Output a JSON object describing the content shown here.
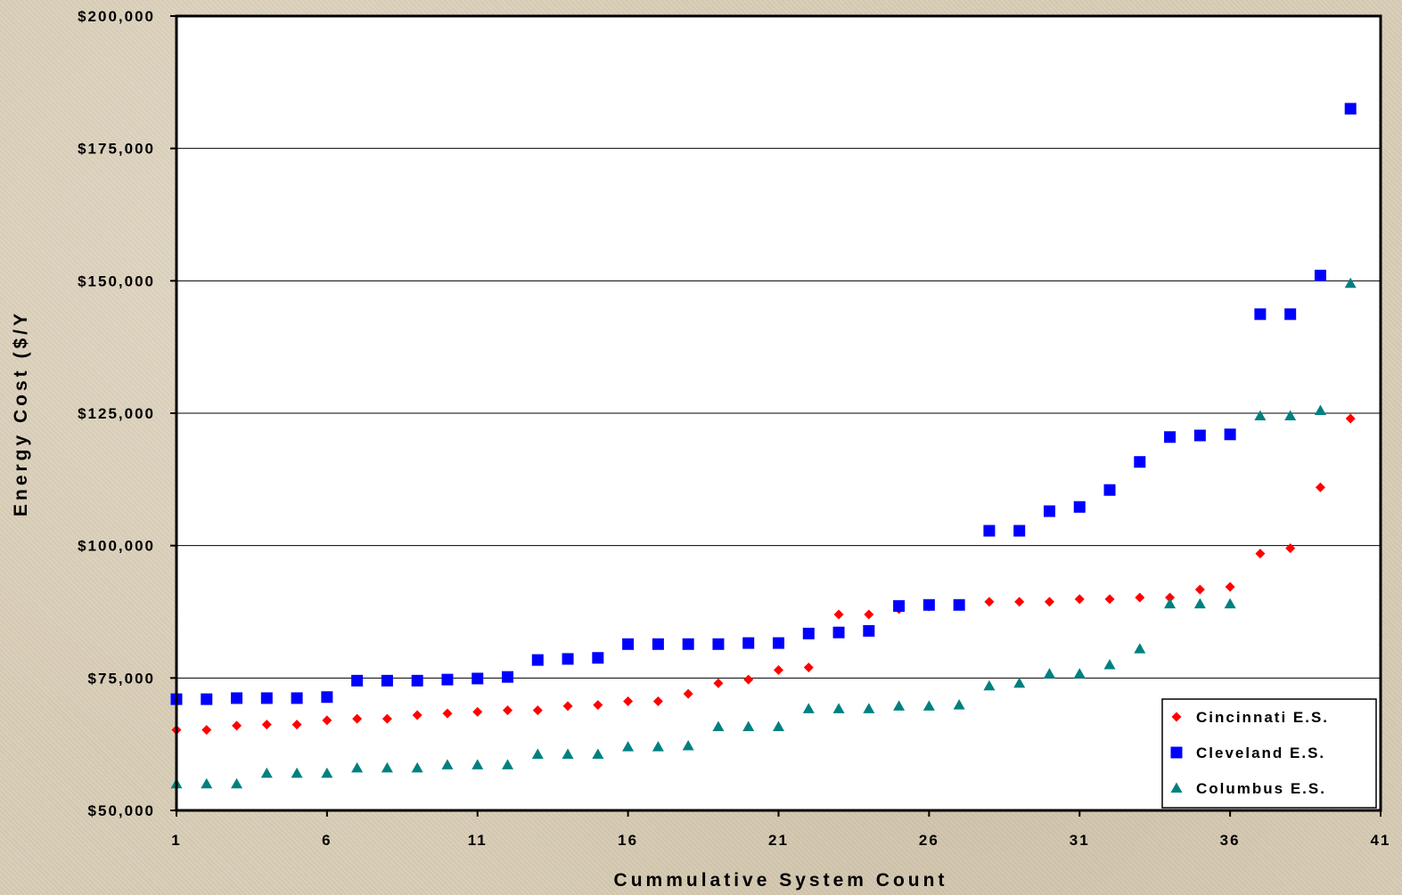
{
  "chart_data": {
    "type": "scatter",
    "xlabel": "Cummulative System Count",
    "ylabel": "Energy Cost ($/Y",
    "xlim": [
      1,
      41
    ],
    "ylim": [
      50000,
      200000
    ],
    "x_ticks": [
      1,
      6,
      11,
      16,
      21,
      26,
      31,
      36,
      41
    ],
    "y_ticks": [
      50000,
      75000,
      100000,
      125000,
      150000,
      175000,
      200000
    ],
    "y_tick_labels": [
      "$50,000",
      "$75,000",
      "$100,000",
      "$125,000",
      "$150,000",
      "$175,000",
      "$200,000"
    ],
    "grid": "horizontal",
    "legend_position": "bottom-right",
    "x": [
      1,
      2,
      3,
      4,
      5,
      6,
      7,
      8,
      9,
      10,
      11,
      12,
      13,
      14,
      15,
      16,
      17,
      18,
      19,
      20,
      21,
      22,
      23,
      24,
      25,
      26,
      27,
      28,
      29,
      30,
      31,
      32,
      33,
      34,
      35,
      36,
      37,
      38,
      39,
      40
    ],
    "series": [
      {
        "name": "Cincinnati E.S.",
        "color": "#ff0000",
        "marker": "diamond",
        "values": [
          65200,
          65200,
          66000,
          66200,
          66200,
          67000,
          67300,
          67300,
          68000,
          68300,
          68600,
          68900,
          68900,
          69700,
          69900,
          70600,
          70600,
          72000,
          74000,
          74700,
          76500,
          77000,
          87000,
          87000,
          88000,
          88500,
          88800,
          89400,
          89400,
          89400,
          89900,
          89900,
          90200,
          90200,
          91700,
          92200,
          98500,
          99500,
          111000,
          124000
        ]
      },
      {
        "name": "Cleveland E.S.",
        "color": "#0000ff",
        "marker": "square",
        "values": [
          71000,
          71000,
          71200,
          71200,
          71200,
          71400,
          74500,
          74500,
          74500,
          74700,
          74900,
          75200,
          78400,
          78600,
          78800,
          81400,
          81400,
          81400,
          81400,
          81600,
          81600,
          83400,
          83600,
          83900,
          88600,
          88800,
          88800,
          102800,
          102800,
          106500,
          107300,
          110500,
          115800,
          120500,
          120800,
          121000,
          143700,
          143700,
          151000,
          182500
        ]
      },
      {
        "name": "Columbus E.S.",
        "color": "#008080",
        "marker": "triangle",
        "values": [
          55000,
          55000,
          55000,
          57000,
          57000,
          57000,
          58000,
          58000,
          58000,
          58600,
          58600,
          58600,
          60600,
          60600,
          60600,
          62000,
          62000,
          62200,
          65800,
          65800,
          65800,
          69200,
          69200,
          69200,
          69700,
          69700,
          69900,
          73500,
          74000,
          75800,
          75800,
          77500,
          80500,
          89000,
          89000,
          89000,
          124500,
          124500,
          125500,
          149500
        ]
      }
    ]
  }
}
